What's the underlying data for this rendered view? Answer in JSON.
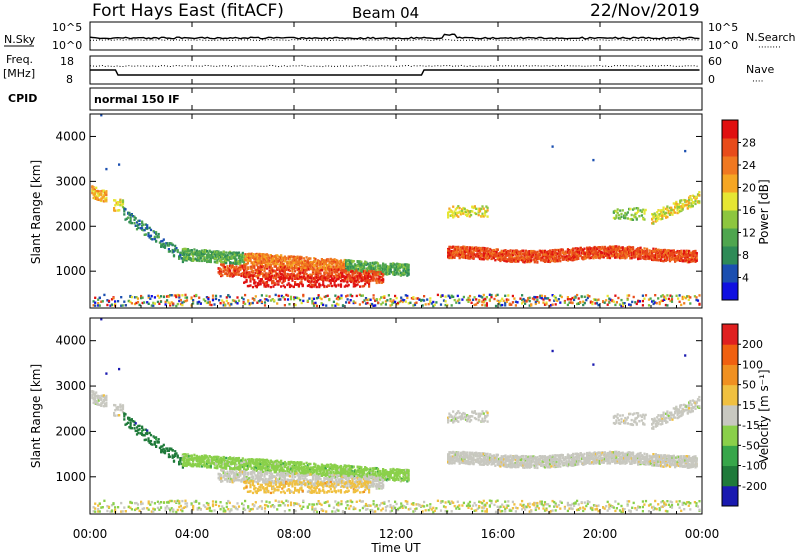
{
  "header": {
    "site": "Fort Hays East (fitACF)",
    "beam": "Beam 04",
    "date": "22/Nov/2019"
  },
  "panels": {
    "nsky": {
      "label": "N.Sky",
      "ticks_left": [
        "10^5",
        "10^0"
      ],
      "ticks_right": [
        "10^5",
        "10^0"
      ],
      "right_label": "N.Search",
      "right_label_style": "········"
    },
    "freq": {
      "label_line1": "Freq.",
      "label_line2": "[MHz]",
      "ticks_left": [
        "18",
        "8"
      ],
      "ticks_right": [
        "60",
        "0"
      ],
      "right_label": "Nave",
      "right_label_style": "····"
    },
    "cpid": {
      "label": "CPID",
      "text": "normal 150 IF"
    }
  },
  "chart_data": [
    {
      "type": "heatmap",
      "name": "power",
      "ylabel": "Slant Range [km]",
      "yticks": [
        "4000",
        "3000",
        "2000",
        "1000"
      ],
      "ytick_values": [
        4000,
        3000,
        2000,
        1000
      ],
      "ylim": [
        180,
        4500
      ],
      "xlim_hours": [
        0,
        24
      ],
      "colorbar": {
        "label": "Power [dB]",
        "ticks": [
          "28",
          "24",
          "20",
          "16",
          "12",
          "8",
          "4"
        ],
        "colors": [
          "#1010e0",
          "#1b4fb0",
          "#2e8b57",
          "#4fa64f",
          "#8dc63f",
          "#e6e633",
          "#f5a623",
          "#f07820",
          "#e84b1a",
          "#e01010"
        ]
      }
    },
    {
      "type": "heatmap",
      "name": "velocity",
      "ylabel": "Slant Range [km]",
      "yticks": [
        "4000",
        "3000",
        "2000",
        "1000"
      ],
      "ytick_values": [
        4000,
        3000,
        2000,
        1000
      ],
      "ylim": [
        180,
        4500
      ],
      "xlim_hours": [
        0,
        24
      ],
      "colorbar": {
        "label": "Velocity [m s⁻¹]",
        "ticks": [
          "200",
          "100",
          "50",
          "15",
          "-15",
          "-50",
          "-100",
          "-200"
        ],
        "colors": [
          "#1a1ab0",
          "#1f7a3a",
          "#37a64a",
          "#8ad04a",
          "#c8c8c0",
          "#f0c040",
          "#f09020",
          "#f06010",
          "#e02020"
        ]
      }
    }
  ],
  "xaxis": {
    "ticks": [
      "00:00",
      "04:00",
      "08:00",
      "12:00",
      "16:00",
      "20:00",
      "00:00"
    ],
    "tick_hours": [
      0,
      4,
      8,
      12,
      16,
      20,
      24
    ],
    "label": "Time UT"
  }
}
